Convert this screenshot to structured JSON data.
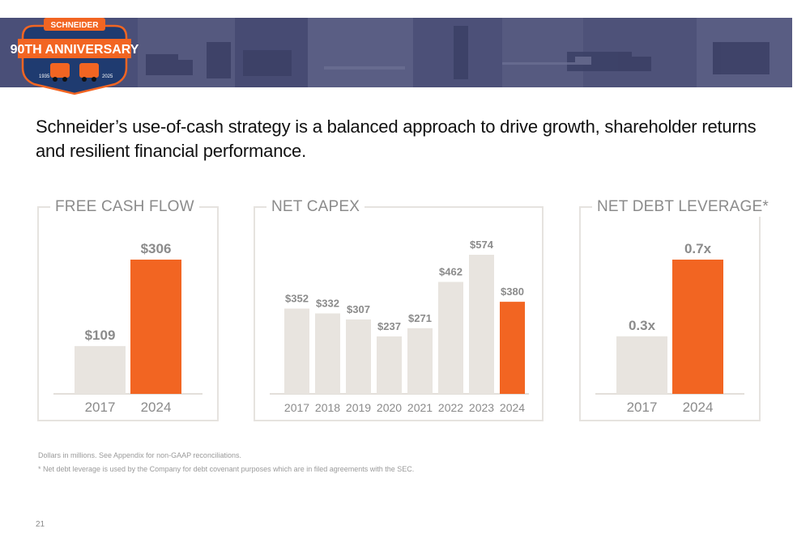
{
  "logo": {
    "brand": "SCHNEIDER",
    "anniversary": "90TH ANNIVERSARY",
    "year_start": "1935",
    "year_end": "2025"
  },
  "title": "Schneider’s use-of-cash strategy is a balanced approach to drive growth, shareholder returns and resilient financial performance.",
  "colors": {
    "highlight": "#f26522",
    "base_bar": "#e8e4df",
    "label_gray": "#8b8b8b",
    "banner": "#4a4f78"
  },
  "chart_data": [
    {
      "type": "bar",
      "title": "FREE CASH FLOW",
      "categories": [
        "2017",
        "2024"
      ],
      "values": [
        109,
        306
      ],
      "labels": [
        "$109",
        "$306"
      ],
      "highlight_index": 1
    },
    {
      "type": "bar",
      "title": "NET CAPEX",
      "categories": [
        "2017",
        "2018",
        "2019",
        "2020",
        "2021",
        "2022",
        "2023",
        "2024"
      ],
      "values": [
        352,
        332,
        307,
        237,
        271,
        462,
        574,
        380
      ],
      "labels": [
        "$352",
        "$332",
        "$307",
        "$237",
        "$271",
        "$462",
        "$574",
        "$380"
      ],
      "highlight_index": 7
    },
    {
      "type": "bar",
      "title": "NET DEBT LEVERAGE*",
      "categories": [
        "2017",
        "2024"
      ],
      "values": [
        0.3,
        0.7
      ],
      "labels": [
        "0.3x",
        "0.7x"
      ],
      "highlight_index": 1
    }
  ],
  "footnotes": {
    "note1": "Dollars in millions. See Appendix for non-GAAP reconciliations.",
    "note2": "* Net debt leverage is used by the Company for debt covenant purposes which are in filed agreements with the SEC."
  },
  "page_number": "21"
}
